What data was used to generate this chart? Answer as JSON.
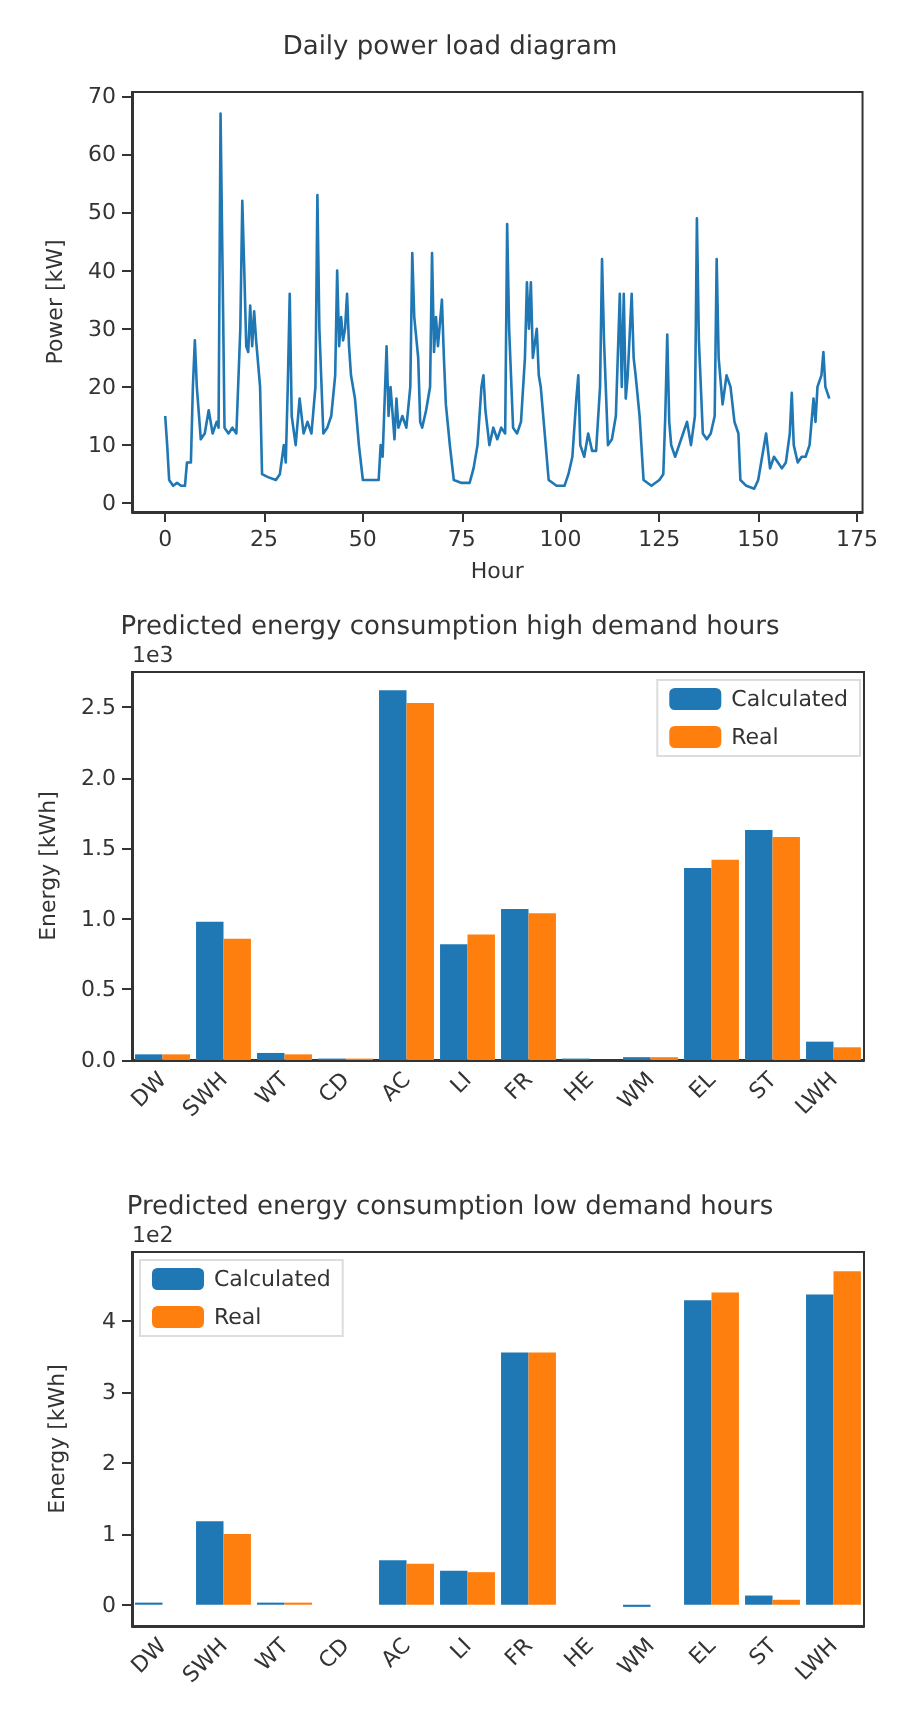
{
  "chart_data": [
    {
      "type": "line",
      "title": "Daily power load diagram",
      "xlabel": "Hour",
      "ylabel": "Power [kW]",
      "color": "#1f77b4",
      "grid": false,
      "legend": false,
      "x": [
        0,
        0.5,
        1,
        2,
        3,
        4,
        5,
        5.5,
        6.5,
        7,
        7.5,
        8,
        9,
        10,
        11,
        12,
        13,
        13.5,
        14,
        14.7,
        15,
        16,
        17,
        18,
        19,
        19.5,
        20,
        20.5,
        21,
        21.5,
        22,
        22.5,
        23,
        24,
        24.5,
        26,
        28,
        29,
        30,
        30.5,
        31,
        31.5,
        32,
        33,
        34,
        35,
        36,
        37,
        38,
        38.5,
        39,
        40,
        41,
        42,
        43,
        43.5,
        44,
        44.5,
        45,
        45.5,
        46,
        46.5,
        47,
        48,
        49,
        50,
        52,
        54,
        54.5,
        55,
        56,
        56.5,
        57,
        58,
        58.5,
        59,
        60,
        61,
        62,
        62.5,
        63,
        64,
        64.5,
        65,
        66,
        67,
        67.5,
        68,
        68.5,
        69,
        69.5,
        70,
        70.5,
        71,
        72,
        73,
        75,
        77,
        78,
        79,
        80,
        80.5,
        81,
        82,
        83,
        84,
        85,
        86,
        86.5,
        87,
        88,
        89,
        90,
        91,
        91.5,
        92,
        92.5,
        93,
        94,
        94.5,
        95,
        96,
        97,
        99,
        101,
        102,
        103,
        104,
        104.5,
        105,
        106,
        107,
        108,
        109,
        110,
        110.5,
        111,
        112,
        113,
        114,
        115,
        115.5,
        116,
        116.5,
        117,
        118,
        118.5,
        119,
        120,
        121,
        123,
        125,
        126,
        126.5,
        127,
        127.5,
        128,
        129,
        130,
        131,
        132,
        133,
        134,
        134.5,
        135,
        136,
        137,
        138,
        139,
        139.5,
        140,
        141,
        142,
        143,
        144,
        145,
        145.5,
        147,
        149,
        150,
        151,
        152,
        153,
        154,
        155,
        156,
        157,
        158,
        158.5,
        159,
        160,
        161,
        162,
        163,
        164,
        164.5,
        165,
        166,
        166.5,
        167,
        168
      ],
      "values": [
        15,
        10,
        4,
        3,
        3.5,
        3,
        3,
        7,
        7,
        20,
        28,
        20,
        11,
        12,
        16,
        12,
        14,
        13,
        67,
        30,
        13,
        12,
        13,
        12,
        30,
        52,
        40,
        27,
        26,
        34,
        27,
        33,
        28,
        20,
        5,
        4.5,
        4,
        5,
        10,
        7,
        20,
        36,
        15,
        10,
        18,
        12,
        14,
        12,
        20,
        53,
        30,
        12,
        13,
        15,
        22,
        40,
        27,
        32,
        28,
        30,
        36,
        27,
        22,
        18,
        10,
        4,
        4,
        4,
        10,
        8,
        27,
        15,
        20,
        11,
        18,
        13,
        15,
        13,
        20,
        43,
        32,
        25,
        14,
        13,
        16,
        20,
        43,
        26,
        32,
        27,
        31,
        35,
        25,
        17,
        10,
        4,
        3.5,
        3.5,
        6,
        10,
        20,
        22,
        16,
        10,
        13,
        11,
        13,
        12,
        48,
        30,
        13,
        12,
        14,
        25,
        38,
        30,
        38,
        25,
        30,
        22,
        20,
        12,
        4,
        3,
        3,
        5,
        8,
        18,
        22,
        10,
        8,
        12,
        9,
        9,
        20,
        42,
        28,
        10,
        11,
        15,
        36,
        20,
        36,
        18,
        22,
        36,
        25,
        22,
        15,
        4,
        3,
        4,
        5,
        15,
        29,
        14,
        10,
        8,
        10,
        12,
        14,
        10,
        15,
        49,
        28,
        12,
        11,
        12,
        15,
        42,
        25,
        17,
        22,
        20,
        14,
        12,
        4,
        3,
        2.5,
        4,
        8,
        12,
        6,
        8,
        7,
        6,
        7,
        12,
        19,
        10,
        7,
        8,
        8,
        10,
        18,
        14,
        20,
        22,
        26,
        20,
        18
      ],
      "xlim": [
        -8.4,
        176.4
      ],
      "xticks": [
        0,
        25,
        50,
        75,
        100,
        125,
        150,
        175
      ],
      "ylim": [
        -1.5,
        70.7
      ],
      "yticks": [
        0,
        10,
        20,
        30,
        40,
        50,
        60,
        70
      ]
    },
    {
      "type": "bar",
      "title": "Predicted energy consumption high demand hours",
      "ylabel": "Energy [kWh]",
      "annotations": [
        "1e3"
      ],
      "grid": false,
      "legend": "top right",
      "categories": [
        "DW",
        "SWH",
        "WT",
        "CD",
        "AC",
        "LI",
        "FR",
        "HE",
        "WM",
        "EL",
        "ST",
        "LWH"
      ],
      "series": [
        {
          "name": "Calculated",
          "color": "#1f77b4",
          "values": [
            0.04,
            0.98,
            0.05,
            0.01,
            2.62,
            0.82,
            1.07,
            0.01,
            0.02,
            1.36,
            1.63,
            0.13
          ]
        },
        {
          "name": "Real",
          "color": "#ff7f0e",
          "values": [
            0.04,
            0.86,
            0.04,
            0.01,
            2.53,
            0.89,
            1.04,
            0,
            0.02,
            1.42,
            1.58,
            0.09
          ]
        }
      ],
      "ylim": [
        0,
        2.75
      ],
      "yticks": [
        {
          "value": 0,
          "label": "0.0"
        },
        {
          "value": 0.5,
          "label": "0.5"
        },
        {
          "value": 1,
          "label": "1.0"
        },
        {
          "value": 1.5,
          "label": "1.5"
        },
        {
          "value": 2,
          "label": "2.0"
        },
        {
          "value": 2.5,
          "label": "2.5"
        }
      ]
    },
    {
      "type": "bar",
      "title": "Predicted energy consumption low demand hours",
      "ylabel": "Energy [kWh]",
      "annotations": [
        "1e2"
      ],
      "grid": false,
      "legend": "top left",
      "categories": [
        "DW",
        "SWH",
        "WT",
        "CD",
        "AC",
        "LI",
        "FR",
        "HE",
        "WM",
        "EL",
        "ST",
        "LWH"
      ],
      "series": [
        {
          "name": "Calculated",
          "color": "#1f77b4",
          "values": [
            0.03,
            1.18,
            0.03,
            0,
            0.63,
            0.48,
            3.56,
            0,
            -0.03,
            4.3,
            0.13,
            4.38
          ]
        },
        {
          "name": "Real",
          "color": "#ff7f0e",
          "values": [
            0,
            1.0,
            0.03,
            0,
            0.58,
            0.46,
            3.56,
            0,
            0,
            4.41,
            0.07,
            4.71
          ]
        }
      ],
      "ylim": [
        -0.3,
        4.98
      ],
      "yticks": [
        0,
        1,
        2,
        3,
        4
      ]
    }
  ]
}
